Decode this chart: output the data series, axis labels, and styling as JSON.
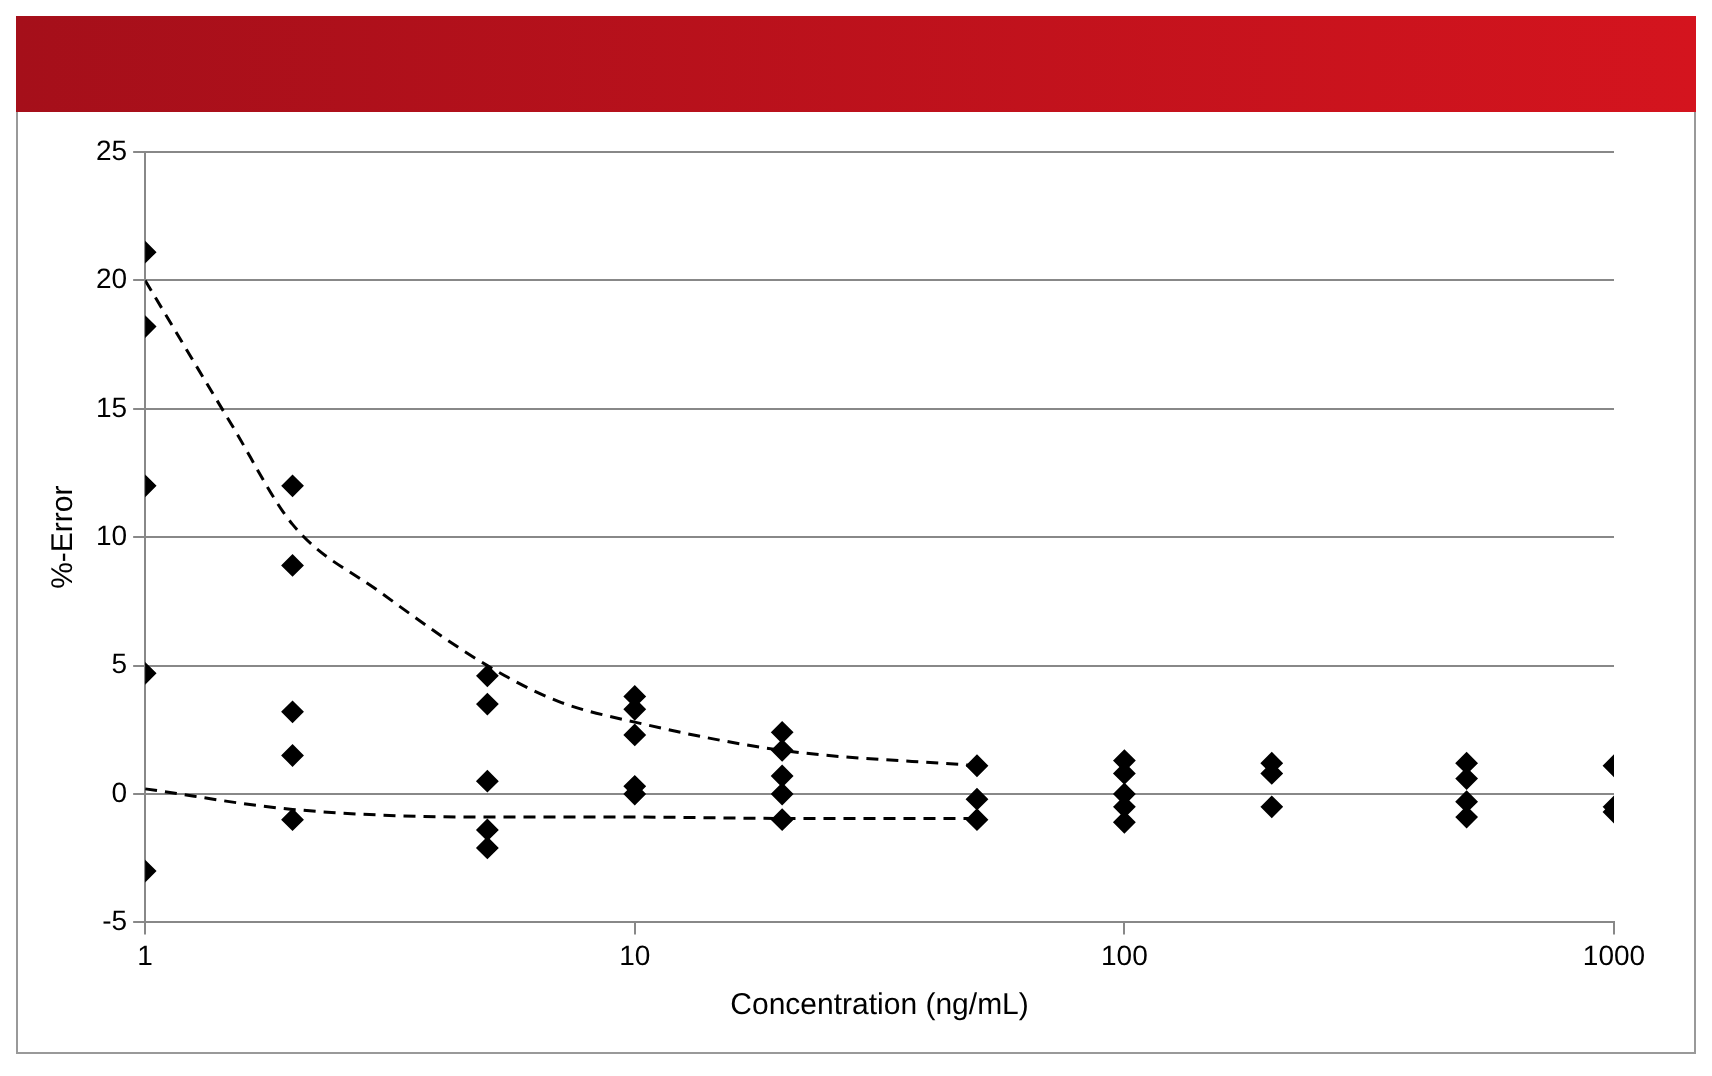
{
  "chart_data": {
    "type": "scatter",
    "xlabel": "Concentration (ng/mL)",
    "ylabel": "%-Error",
    "log": "x",
    "xlim": [
      1,
      1000
    ],
    "xticks": [
      1,
      10,
      100,
      1000
    ],
    "ylim": [
      -5,
      25
    ],
    "yticks": [
      -5,
      0,
      5,
      10,
      15,
      20,
      25
    ],
    "grid": "y",
    "series": [
      {
        "type": "scatter",
        "color": "#000000",
        "marker": "diamond",
        "x": [
          1,
          1,
          1,
          1,
          1,
          2,
          2,
          2,
          2,
          2,
          5,
          5,
          5,
          5,
          5,
          10,
          10,
          10,
          10,
          10,
          20,
          20,
          20,
          20,
          20,
          50,
          50,
          50,
          100,
          100,
          100,
          100,
          100,
          200,
          200,
          200,
          500,
          500,
          500,
          500,
          1000,
          1000,
          1000
        ],
        "values": [
          21.1,
          18.2,
          12.0,
          4.7,
          -3.0,
          12.0,
          8.9,
          3.2,
          1.5,
          -1.0,
          4.6,
          3.5,
          0.5,
          -1.4,
          -2.1,
          3.8,
          3.3,
          2.3,
          0.3,
          0.0,
          2.4,
          1.7,
          0.7,
          0.0,
          -1.0,
          1.1,
          -0.2,
          -1.0,
          1.3,
          0.8,
          0.0,
          -0.5,
          -1.1,
          1.2,
          0.8,
          -0.5,
          1.2,
          0.6,
          -0.3,
          -0.9,
          1.1,
          -0.5,
          -0.7
        ]
      },
      {
        "type": "line",
        "color": "#000000",
        "marker": "none",
        "line_style": "dashed",
        "x": [
          1,
          1.5,
          2,
          3,
          5,
          7,
          10,
          20,
          50
        ],
        "values": [
          20.0,
          14.4,
          10.5,
          7.9,
          5.0,
          3.6,
          2.8,
          1.7,
          1.1
        ]
      },
      {
        "type": "line",
        "color": "#000000",
        "marker": "none",
        "line_style": "dashed",
        "x": [
          1,
          2,
          5,
          10,
          20,
          50
        ],
        "values": [
          0.2,
          -0.6,
          -0.9,
          -0.9,
          -0.95,
          -0.95
        ]
      }
    ]
  }
}
